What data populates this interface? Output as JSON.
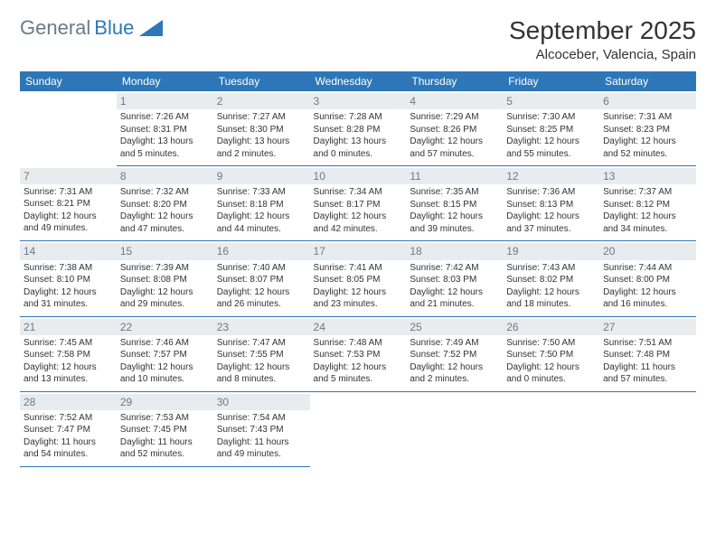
{
  "logo": {
    "text1": "General",
    "text2": "Blue"
  },
  "title": "September 2025",
  "location": "Alcoceber, Valencia, Spain",
  "header_bg": "#2d77b8",
  "header_fg": "#ffffff",
  "daynum_bg": "#e8ecef",
  "daynum_fg": "#6b7a8a",
  "border_color": "#2d77b8",
  "daynames": [
    "Sunday",
    "Monday",
    "Tuesday",
    "Wednesday",
    "Thursday",
    "Friday",
    "Saturday"
  ],
  "weeks": [
    [
      {
        "n": "",
        "lines": []
      },
      {
        "n": "1",
        "lines": [
          "Sunrise: 7:26 AM",
          "Sunset: 8:31 PM",
          "Daylight: 13 hours",
          "and 5 minutes."
        ]
      },
      {
        "n": "2",
        "lines": [
          "Sunrise: 7:27 AM",
          "Sunset: 8:30 PM",
          "Daylight: 13 hours",
          "and 2 minutes."
        ]
      },
      {
        "n": "3",
        "lines": [
          "Sunrise: 7:28 AM",
          "Sunset: 8:28 PM",
          "Daylight: 13 hours",
          "and 0 minutes."
        ]
      },
      {
        "n": "4",
        "lines": [
          "Sunrise: 7:29 AM",
          "Sunset: 8:26 PM",
          "Daylight: 12 hours",
          "and 57 minutes."
        ]
      },
      {
        "n": "5",
        "lines": [
          "Sunrise: 7:30 AM",
          "Sunset: 8:25 PM",
          "Daylight: 12 hours",
          "and 55 minutes."
        ]
      },
      {
        "n": "6",
        "lines": [
          "Sunrise: 7:31 AM",
          "Sunset: 8:23 PM",
          "Daylight: 12 hours",
          "and 52 minutes."
        ]
      }
    ],
    [
      {
        "n": "7",
        "lines": [
          "Sunrise: 7:31 AM",
          "Sunset: 8:21 PM",
          "Daylight: 12 hours",
          "and 49 minutes."
        ]
      },
      {
        "n": "8",
        "lines": [
          "Sunrise: 7:32 AM",
          "Sunset: 8:20 PM",
          "Daylight: 12 hours",
          "and 47 minutes."
        ]
      },
      {
        "n": "9",
        "lines": [
          "Sunrise: 7:33 AM",
          "Sunset: 8:18 PM",
          "Daylight: 12 hours",
          "and 44 minutes."
        ]
      },
      {
        "n": "10",
        "lines": [
          "Sunrise: 7:34 AM",
          "Sunset: 8:17 PM",
          "Daylight: 12 hours",
          "and 42 minutes."
        ]
      },
      {
        "n": "11",
        "lines": [
          "Sunrise: 7:35 AM",
          "Sunset: 8:15 PM",
          "Daylight: 12 hours",
          "and 39 minutes."
        ]
      },
      {
        "n": "12",
        "lines": [
          "Sunrise: 7:36 AM",
          "Sunset: 8:13 PM",
          "Daylight: 12 hours",
          "and 37 minutes."
        ]
      },
      {
        "n": "13",
        "lines": [
          "Sunrise: 7:37 AM",
          "Sunset: 8:12 PM",
          "Daylight: 12 hours",
          "and 34 minutes."
        ]
      }
    ],
    [
      {
        "n": "14",
        "lines": [
          "Sunrise: 7:38 AM",
          "Sunset: 8:10 PM",
          "Daylight: 12 hours",
          "and 31 minutes."
        ]
      },
      {
        "n": "15",
        "lines": [
          "Sunrise: 7:39 AM",
          "Sunset: 8:08 PM",
          "Daylight: 12 hours",
          "and 29 minutes."
        ]
      },
      {
        "n": "16",
        "lines": [
          "Sunrise: 7:40 AM",
          "Sunset: 8:07 PM",
          "Daylight: 12 hours",
          "and 26 minutes."
        ]
      },
      {
        "n": "17",
        "lines": [
          "Sunrise: 7:41 AM",
          "Sunset: 8:05 PM",
          "Daylight: 12 hours",
          "and 23 minutes."
        ]
      },
      {
        "n": "18",
        "lines": [
          "Sunrise: 7:42 AM",
          "Sunset: 8:03 PM",
          "Daylight: 12 hours",
          "and 21 minutes."
        ]
      },
      {
        "n": "19",
        "lines": [
          "Sunrise: 7:43 AM",
          "Sunset: 8:02 PM",
          "Daylight: 12 hours",
          "and 18 minutes."
        ]
      },
      {
        "n": "20",
        "lines": [
          "Sunrise: 7:44 AM",
          "Sunset: 8:00 PM",
          "Daylight: 12 hours",
          "and 16 minutes."
        ]
      }
    ],
    [
      {
        "n": "21",
        "lines": [
          "Sunrise: 7:45 AM",
          "Sunset: 7:58 PM",
          "Daylight: 12 hours",
          "and 13 minutes."
        ]
      },
      {
        "n": "22",
        "lines": [
          "Sunrise: 7:46 AM",
          "Sunset: 7:57 PM",
          "Daylight: 12 hours",
          "and 10 minutes."
        ]
      },
      {
        "n": "23",
        "lines": [
          "Sunrise: 7:47 AM",
          "Sunset: 7:55 PM",
          "Daylight: 12 hours",
          "and 8 minutes."
        ]
      },
      {
        "n": "24",
        "lines": [
          "Sunrise: 7:48 AM",
          "Sunset: 7:53 PM",
          "Daylight: 12 hours",
          "and 5 minutes."
        ]
      },
      {
        "n": "25",
        "lines": [
          "Sunrise: 7:49 AM",
          "Sunset: 7:52 PM",
          "Daylight: 12 hours",
          "and 2 minutes."
        ]
      },
      {
        "n": "26",
        "lines": [
          "Sunrise: 7:50 AM",
          "Sunset: 7:50 PM",
          "Daylight: 12 hours",
          "and 0 minutes."
        ]
      },
      {
        "n": "27",
        "lines": [
          "Sunrise: 7:51 AM",
          "Sunset: 7:48 PM",
          "Daylight: 11 hours",
          "and 57 minutes."
        ]
      }
    ],
    [
      {
        "n": "28",
        "lines": [
          "Sunrise: 7:52 AM",
          "Sunset: 7:47 PM",
          "Daylight: 11 hours",
          "and 54 minutes."
        ]
      },
      {
        "n": "29",
        "lines": [
          "Sunrise: 7:53 AM",
          "Sunset: 7:45 PM",
          "Daylight: 11 hours",
          "and 52 minutes."
        ]
      },
      {
        "n": "30",
        "lines": [
          "Sunrise: 7:54 AM",
          "Sunset: 7:43 PM",
          "Daylight: 11 hours",
          "and 49 minutes."
        ]
      },
      {
        "n": "",
        "lines": []
      },
      {
        "n": "",
        "lines": []
      },
      {
        "n": "",
        "lines": []
      },
      {
        "n": "",
        "lines": []
      }
    ]
  ]
}
